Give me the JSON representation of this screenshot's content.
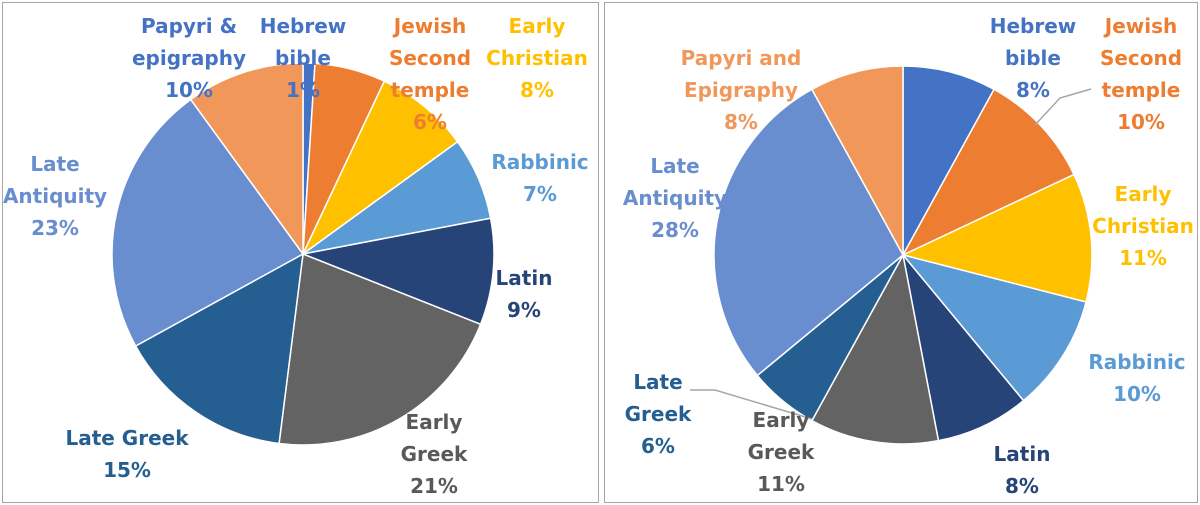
{
  "chart_data": [
    {
      "type": "pie",
      "start_angle_deg": 0,
      "direction": "clockwise",
      "slices": [
        {
          "label": "Hebrew bible",
          "value": 1,
          "value_label": "1%",
          "color": "#4472C4",
          "label_color": "#4472C4"
        },
        {
          "label": "Jewish Second temple",
          "value": 6,
          "value_label": "6%",
          "color": "#ED7D31",
          "label_color": "#ED7D31"
        },
        {
          "label": "Early Christian",
          "value": 8,
          "value_label": "8%",
          "color": "#FFC000",
          "label_color": "#FFC000"
        },
        {
          "label": "Rabbinic",
          "value": 7,
          "value_label": "7%",
          "color": "#5B9BD5",
          "label_color": "#5B9BD5"
        },
        {
          "label": "Latin",
          "value": 9,
          "value_label": "9%",
          "color": "#264478",
          "label_color": "#264478"
        },
        {
          "label": "Early Greek",
          "value": 21,
          "value_label": "21%",
          "color": "#636363",
          "label_color": "#595959"
        },
        {
          "label": "Late Greek",
          "value": 15,
          "value_label": "15%",
          "color": "#255E91",
          "label_color": "#255E91"
        },
        {
          "label": "Late Antiquity",
          "value": 23,
          "value_label": "23%",
          "color": "#698ED0",
          "label_color": "#698ED0"
        },
        {
          "label": "Papyri & epigraphy",
          "value": 10,
          "value_label": "10%",
          "color": "#F1975A",
          "label_color": "#4472C4"
        }
      ]
    },
    {
      "type": "pie",
      "start_angle_deg": 0,
      "direction": "clockwise",
      "slices": [
        {
          "label": "Hebrew bible",
          "value": 8,
          "value_label": "8%",
          "color": "#4472C4",
          "label_color": "#4472C4"
        },
        {
          "label": "Jewish Second temple",
          "value": 10,
          "value_label": "10%",
          "color": "#ED7D31",
          "label_color": "#ED7D31"
        },
        {
          "label": "Early Christian",
          "value": 11,
          "value_label": "11%",
          "color": "#FFC000",
          "label_color": "#FFC000"
        },
        {
          "label": "Rabbinic",
          "value": 10,
          "value_label": "10%",
          "color": "#5B9BD5",
          "label_color": "#5B9BD5"
        },
        {
          "label": "Latin",
          "value": 8,
          "value_label": "8%",
          "color": "#264478",
          "label_color": "#264478"
        },
        {
          "label": "Early Greek",
          "value": 11,
          "value_label": "11%",
          "color": "#636363",
          "label_color": "#595959"
        },
        {
          "label": "Late Greek",
          "value": 6,
          "value_label": "6%",
          "color": "#255E91",
          "label_color": "#255E91"
        },
        {
          "label": "Late Antiquity",
          "value": 28,
          "value_label": "28%",
          "color": "#698ED0",
          "label_color": "#698ED0"
        },
        {
          "label": "Papyri and Epigraphy",
          "value": 8,
          "value_label": "8%",
          "color": "#F1975A",
          "label_color": "#F1975A"
        }
      ]
    }
  ]
}
